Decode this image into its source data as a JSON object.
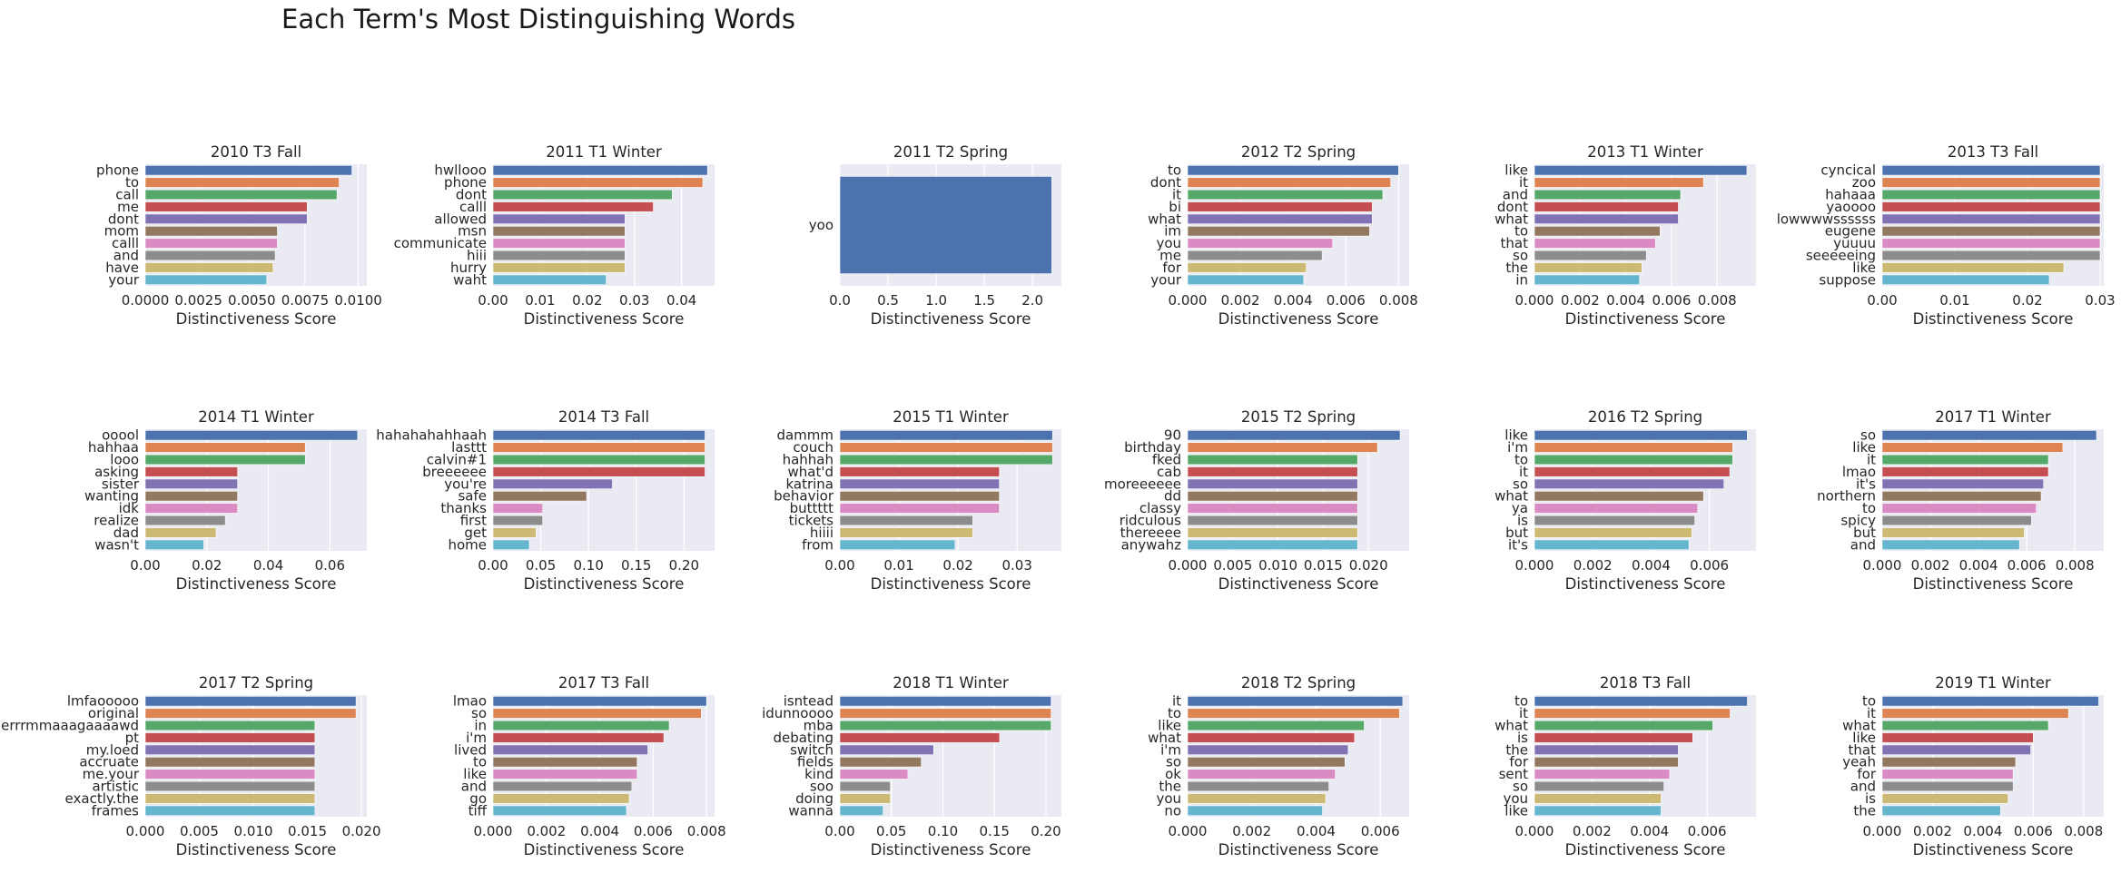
{
  "figure": {
    "title": "Each Term's Most Distinguishing Words"
  },
  "palette": [
    "#4c72b0",
    "#dd8452",
    "#55a868",
    "#c44e52",
    "#8172b3",
    "#937860",
    "#da8bc3",
    "#8c8c8c",
    "#ccb974",
    "#64b5cd"
  ],
  "plot_style": {
    "background": "#eaeaf2",
    "grid": "#ffffff"
  },
  "chart_data": [
    {
      "type": "bar",
      "orientation": "horizontal",
      "title": "2010 T3 Fall",
      "xlabel": "Distinctiveness Score",
      "ylabel": "",
      "categories": [
        "phone",
        "to",
        "call",
        "me",
        "dont",
        "mom",
        "calll",
        "and",
        "have",
        "your"
      ],
      "values": [
        0.0097,
        0.0091,
        0.009,
        0.0076,
        0.0076,
        0.0062,
        0.0062,
        0.0061,
        0.006,
        0.0057
      ],
      "xlim": [
        0,
        0.0104
      ],
      "xticks": [
        0,
        0.0025,
        0.005,
        0.0075,
        0.01
      ],
      "xtick_labels": [
        "0.0000",
        "0.0025",
        "0.0050",
        "0.0075",
        "0.0100"
      ]
    },
    {
      "type": "bar",
      "orientation": "horizontal",
      "title": "2011 T1 Winter",
      "xlabel": "Distinctiveness Score",
      "ylabel": "",
      "categories": [
        "hwllooo",
        "phone",
        "dont",
        "calll",
        "allowed",
        "msn",
        "communicate",
        "hiii",
        "hurry",
        "waht"
      ],
      "values": [
        0.0455,
        0.0445,
        0.038,
        0.034,
        0.028,
        0.028,
        0.028,
        0.028,
        0.028,
        0.024
      ],
      "xlim": [
        0,
        0.047
      ],
      "xticks": [
        0,
        0.01,
        0.02,
        0.03,
        0.04
      ],
      "xtick_labels": [
        "0.00",
        "0.01",
        "0.02",
        "0.03",
        "0.04"
      ]
    },
    {
      "type": "bar",
      "orientation": "horizontal",
      "title": "2011 T2 Spring",
      "xlabel": "Distinctiveness Score",
      "ylabel": "",
      "categories": [
        "yoo"
      ],
      "values": [
        2.2
      ],
      "xlim": [
        0,
        2.3
      ],
      "xticks": [
        0,
        0.5,
        1,
        1.5,
        2
      ],
      "xtick_labels": [
        "0.0",
        "0.5",
        "1.0",
        "1.5",
        "2.0"
      ]
    },
    {
      "type": "bar",
      "orientation": "horizontal",
      "title": "2012 T2 Spring",
      "xlabel": "Distinctiveness Score",
      "ylabel": "",
      "categories": [
        "to",
        "dont",
        "it",
        "bi",
        "what",
        "im",
        "you",
        "me",
        "for",
        "your"
      ],
      "values": [
        0.008,
        0.0077,
        0.0074,
        0.007,
        0.007,
        0.0069,
        0.0055,
        0.0051,
        0.0045,
        0.0044
      ],
      "xlim": [
        0,
        0.0084
      ],
      "xticks": [
        0,
        0.002,
        0.004,
        0.006,
        0.008
      ],
      "xtick_labels": [
        "0.000",
        "0.002",
        "0.004",
        "0.006",
        "0.008"
      ]
    },
    {
      "type": "bar",
      "orientation": "horizontal",
      "title": "2013 T1 Winter",
      "xlabel": "Distinctiveness Score",
      "ylabel": "",
      "categories": [
        "like",
        "it",
        "and",
        "dont",
        "what",
        "to",
        "that",
        "so",
        "the",
        "in"
      ],
      "values": [
        0.0093,
        0.0074,
        0.0064,
        0.0063,
        0.0063,
        0.0055,
        0.0053,
        0.0049,
        0.0047,
        0.0046
      ],
      "xlim": [
        0,
        0.0097
      ],
      "xticks": [
        0,
        0.002,
        0.004,
        0.006,
        0.008
      ],
      "xtick_labels": [
        "0.000",
        "0.002",
        "0.004",
        "0.006",
        "0.008"
      ]
    },
    {
      "type": "bar",
      "orientation": "horizontal",
      "title": "2013 T3 Fall",
      "xlabel": "Distinctiveness Score",
      "ylabel": "",
      "categories": [
        "cyncical",
        "zoo",
        "hahaaa",
        "yaoooo",
        "lowwwwssssss",
        "eugene",
        "yuuuu",
        "seeeeeing",
        "like",
        "suppose"
      ],
      "values": [
        0.03,
        0.03,
        0.03,
        0.03,
        0.03,
        0.03,
        0.03,
        0.03,
        0.025,
        0.023
      ],
      "xlim": [
        0,
        0.0305
      ],
      "xticks": [
        0,
        0.01,
        0.02,
        0.03
      ],
      "xtick_labels": [
        "0.00",
        "0.01",
        "0.02",
        "0.03"
      ]
    },
    {
      "type": "bar",
      "orientation": "horizontal",
      "title": "2014 T1 Winter",
      "xlabel": "Distinctiveness Score",
      "ylabel": "",
      "categories": [
        "ooool",
        "hahhaa",
        "looo",
        "asking",
        "sister",
        "wanting",
        "idk",
        "realize",
        "dad",
        "wasn't"
      ],
      "values": [
        0.069,
        0.052,
        0.052,
        0.03,
        0.03,
        0.03,
        0.03,
        0.026,
        0.023,
        0.019
      ],
      "xlim": [
        0,
        0.072
      ],
      "xticks": [
        0,
        0.02,
        0.04,
        0.06
      ],
      "xtick_labels": [
        "0.00",
        "0.02",
        "0.04",
        "0.06"
      ]
    },
    {
      "type": "bar",
      "orientation": "horizontal",
      "title": "2014 T3 Fall",
      "xlabel": "Distinctiveness Score",
      "ylabel": "",
      "categories": [
        "hahahahahhaah",
        "lasttt",
        "calvin#1",
        "breeeeee",
        "you're",
        "safe",
        "thanks",
        "first",
        "get",
        "home"
      ],
      "values": [
        0.222,
        0.222,
        0.222,
        0.222,
        0.125,
        0.098,
        0.052,
        0.052,
        0.045,
        0.038
      ],
      "xlim": [
        0,
        0.232
      ],
      "xticks": [
        0,
        0.05,
        0.1,
        0.15,
        0.2
      ],
      "xtick_labels": [
        "0.00",
        "0.05",
        "0.10",
        "0.15",
        "0.20"
      ]
    },
    {
      "type": "bar",
      "orientation": "horizontal",
      "title": "2015 T1 Winter",
      "xlabel": "Distinctiveness Score",
      "ylabel": "",
      "categories": [
        "dammm",
        "couch",
        "hahhah",
        "what'd",
        "katrina",
        "behavior",
        "buttttt",
        "tickets",
        "hiiii",
        "from"
      ],
      "values": [
        0.036,
        0.036,
        0.036,
        0.027,
        0.027,
        0.027,
        0.027,
        0.0225,
        0.0225,
        0.0195
      ],
      "xlim": [
        0,
        0.0375
      ],
      "xticks": [
        0,
        0.01,
        0.02,
        0.03
      ],
      "xtick_labels": [
        "0.00",
        "0.01",
        "0.02",
        "0.03"
      ]
    },
    {
      "type": "bar",
      "orientation": "horizontal",
      "title": "2015 T2 Spring",
      "xlabel": "Distinctiveness Score",
      "ylabel": "",
      "categories": [
        "90",
        "birthday",
        "fked",
        "cab",
        "moreeeeee",
        "dd",
        "classy",
        "ridculous",
        "thereeee",
        "anywahz"
      ],
      "values": [
        0.0235,
        0.021,
        0.0188,
        0.0188,
        0.0188,
        0.0188,
        0.0188,
        0.0188,
        0.0188,
        0.0188
      ],
      "xlim": [
        0,
        0.0245
      ],
      "xticks": [
        0,
        0.005,
        0.01,
        0.015,
        0.02
      ],
      "xtick_labels": [
        "0.000",
        "0.005",
        "0.010",
        "0.015",
        "0.020"
      ]
    },
    {
      "type": "bar",
      "orientation": "horizontal",
      "title": "2016 T2 Spring",
      "xlabel": "Distinctiveness Score",
      "ylabel": "",
      "categories": [
        "like",
        "i'm",
        "to",
        "it",
        "so",
        "what",
        "ya",
        "is",
        "but",
        "it's"
      ],
      "values": [
        0.0073,
        0.0068,
        0.0068,
        0.0067,
        0.0065,
        0.0058,
        0.0056,
        0.0055,
        0.0054,
        0.0053
      ],
      "xlim": [
        0,
        0.0076
      ],
      "xticks": [
        0,
        0.002,
        0.004,
        0.006
      ],
      "xtick_labels": [
        "0.000",
        "0.002",
        "0.004",
        "0.006"
      ]
    },
    {
      "type": "bar",
      "orientation": "horizontal",
      "title": "2017 T1 Winter",
      "xlabel": "Distinctiveness Score",
      "ylabel": "",
      "categories": [
        "so",
        "like",
        "it",
        "lmao",
        "it's",
        "northern",
        "to",
        "spicy",
        "but",
        "and"
      ],
      "values": [
        0.0089,
        0.0075,
        0.0069,
        0.0069,
        0.0067,
        0.0066,
        0.0064,
        0.0062,
        0.0059,
        0.0057
      ],
      "xlim": [
        0,
        0.0092
      ],
      "xticks": [
        0,
        0.002,
        0.004,
        0.006,
        0.008
      ],
      "xtick_labels": [
        "0.000",
        "0.002",
        "0.004",
        "0.006",
        "0.008"
      ]
    },
    {
      "type": "bar",
      "orientation": "horizontal",
      "title": "2017 T2 Spring",
      "xlabel": "Distinctiveness Score",
      "ylabel": "",
      "categories": [
        "lmfaooooo",
        "original",
        "errrmmaaagaaaawd",
        "pt",
        "my.loed",
        "accruate",
        "me.your",
        "artistic",
        "exactly.the",
        "frames"
      ],
      "values": [
        0.0195,
        0.0195,
        0.0157,
        0.0157,
        0.0157,
        0.0157,
        0.0157,
        0.0157,
        0.0157,
        0.0157
      ],
      "xlim": [
        0,
        0.0205
      ],
      "xticks": [
        0,
        0.005,
        0.01,
        0.015,
        0.02
      ],
      "xtick_labels": [
        "0.000",
        "0.005",
        "0.010",
        "0.015",
        "0.020"
      ]
    },
    {
      "type": "bar",
      "orientation": "horizontal",
      "title": "2017 T3 Fall",
      "xlabel": "Distinctiveness Score",
      "ylabel": "",
      "categories": [
        "lmao",
        "so",
        "in",
        "i'm",
        "lived",
        "to",
        "like",
        "and",
        "go",
        "tiff"
      ],
      "values": [
        0.008,
        0.0078,
        0.0066,
        0.0064,
        0.0058,
        0.0054,
        0.0054,
        0.0052,
        0.0051,
        0.005
      ],
      "xlim": [
        0,
        0.0083
      ],
      "xticks": [
        0,
        0.002,
        0.004,
        0.006,
        0.008
      ],
      "xtick_labels": [
        "0.000",
        "0.002",
        "0.004",
        "0.006",
        "0.008"
      ]
    },
    {
      "type": "bar",
      "orientation": "horizontal",
      "title": "2018 T1 Winter",
      "xlabel": "Distinctiveness Score",
      "ylabel": "",
      "categories": [
        "isntead",
        "idunnoooo",
        "mba",
        "debating",
        "switch",
        "fields",
        "kind",
        "soo",
        "doing",
        "wanna"
      ],
      "values": [
        0.205,
        0.205,
        0.205,
        0.155,
        0.091,
        0.079,
        0.066,
        0.049,
        0.049,
        0.042
      ],
      "xlim": [
        0,
        0.215
      ],
      "xticks": [
        0,
        0.05,
        0.1,
        0.15,
        0.2
      ],
      "xtick_labels": [
        "0.00",
        "0.05",
        "0.10",
        "0.15",
        "0.20"
      ]
    },
    {
      "type": "bar",
      "orientation": "horizontal",
      "title": "2018 T2 Spring",
      "xlabel": "Distinctiveness Score",
      "ylabel": "",
      "categories": [
        "it",
        "to",
        "like",
        "what",
        "i'm",
        "so",
        "ok",
        "the",
        "you",
        "no"
      ],
      "values": [
        0.0067,
        0.0066,
        0.0055,
        0.0052,
        0.005,
        0.0049,
        0.0046,
        0.0044,
        0.0043,
        0.0042
      ],
      "xlim": [
        0,
        0.0069
      ],
      "xticks": [
        0,
        0.002,
        0.004,
        0.006
      ],
      "xtick_labels": [
        "0.000",
        "0.002",
        "0.004",
        "0.006"
      ]
    },
    {
      "type": "bar",
      "orientation": "horizontal",
      "title": "2018 T3 Fall",
      "xlabel": "Distinctiveness Score",
      "ylabel": "",
      "categories": [
        "to",
        "it",
        "what",
        "is",
        "the",
        "for",
        "sent",
        "so",
        "you",
        "like"
      ],
      "values": [
        0.0074,
        0.0068,
        0.0062,
        0.0055,
        0.005,
        0.005,
        0.0047,
        0.0045,
        0.0044,
        0.0044
      ],
      "xlim": [
        0,
        0.0077
      ],
      "xticks": [
        0,
        0.002,
        0.004,
        0.006
      ],
      "xtick_labels": [
        "0.000",
        "0.002",
        "0.004",
        "0.006"
      ]
    },
    {
      "type": "bar",
      "orientation": "horizontal",
      "title": "2019 T1 Winter",
      "xlabel": "Distinctiveness Score",
      "ylabel": "",
      "categories": [
        "to",
        "it",
        "what",
        "like",
        "that",
        "yeah",
        "for",
        "and",
        "is",
        "the"
      ],
      "values": [
        0.0086,
        0.0074,
        0.0066,
        0.006,
        0.0059,
        0.0053,
        0.0052,
        0.0052,
        0.005,
        0.0047
      ],
      "xlim": [
        0,
        0.0088
      ],
      "xticks": [
        0,
        0.002,
        0.004,
        0.006,
        0.008
      ],
      "xtick_labels": [
        "0.000",
        "0.002",
        "0.004",
        "0.006",
        "0.008"
      ]
    }
  ]
}
